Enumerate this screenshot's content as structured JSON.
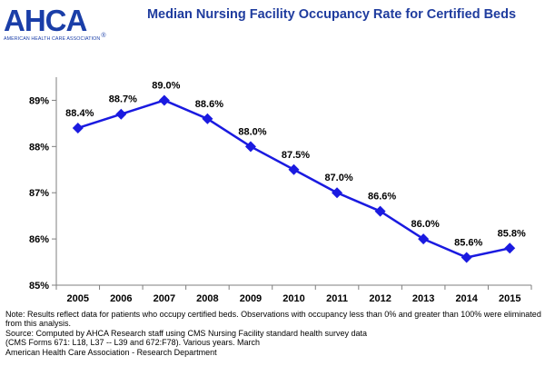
{
  "logo": {
    "text": "AHCA",
    "subtext": "AMERICAN HEALTH CARE ASSOCIATION",
    "mark": "®",
    "color": "#1a3ea8"
  },
  "title": "Median Nursing Facility Occupancy Rate for Certified Beds",
  "colors": {
    "title": "#1f3c9e",
    "line": "#1a1ae0",
    "axis": "#7f7f7f"
  },
  "chart_data": {
    "type": "line",
    "title": "Median Nursing Facility Occupancy Rate for Certified Beds",
    "xlabel": "",
    "ylabel": "",
    "categories": [
      "2005",
      "2006",
      "2007",
      "2008",
      "2009",
      "2010",
      "2011",
      "2012",
      "2013",
      "2014",
      "2015"
    ],
    "series": [
      {
        "values": [
          88.4,
          88.7,
          89.0,
          88.6,
          88.0,
          87.5,
          87.0,
          86.6,
          86.0,
          85.6,
          85.8
        ],
        "labels": [
          "88.4%",
          "88.7%",
          "89.0%",
          "88.6%",
          "88.0%",
          "87.5%",
          "87.0%",
          "86.6%",
          "86.0%",
          "85.6%",
          "85.8%"
        ]
      }
    ],
    "ylim": [
      85,
      89.5
    ],
    "yticks": [
      85,
      86,
      87,
      88,
      89
    ],
    "ytick_labels": [
      "85%",
      "86%",
      "87%",
      "88%",
      "89%"
    ],
    "grid": false,
    "legend": "none",
    "marker": "diamond"
  },
  "notes": [
    "Note: Results reflect data for patients who occupy certified beds. Observations with occupancy less than 0% and greater than 100% were eliminated from this analysis.",
    "Source: Computed by AHCA Research staff using CMS Nursing Facility standard health survey data",
    " (CMS Forms 671: L18, L37 -- L39 and 672:F78). Various years. March",
    " American Health Care Association - Research Department"
  ]
}
